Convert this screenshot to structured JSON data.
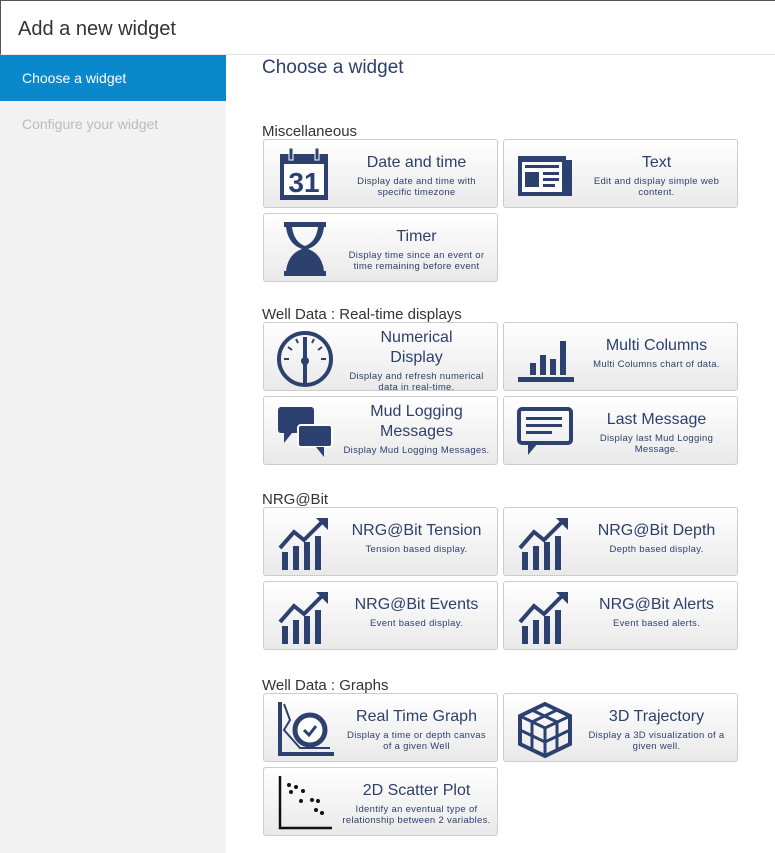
{
  "header": {
    "title": "Add a new widget"
  },
  "sidebar": {
    "items": [
      {
        "label": "Choose a widget",
        "active": true
      },
      {
        "label": "Configure your widget",
        "active": false
      }
    ]
  },
  "main": {
    "title": "Choose a widget",
    "sections": [
      {
        "label": "Miscellaneous",
        "widgets": [
          {
            "title": "Date and time",
            "desc": "Display date and time with specific timezone",
            "icon": "calendar-icon"
          },
          {
            "title": "Text",
            "desc": "Edit and display simple web content.",
            "icon": "newspaper-icon"
          },
          {
            "title": "Timer",
            "desc": "Display time since an event or time remaining before event",
            "icon": "hourglass-icon"
          }
        ]
      },
      {
        "label": "Well Data : Real-time displays",
        "widgets": [
          {
            "title": "Numerical Display",
            "desc": "Display and refresh numerical data in real-time.",
            "icon": "gauge-icon"
          },
          {
            "title": "Multi Columns",
            "desc": "Multi Columns chart of data.",
            "icon": "bar-chart-icon"
          },
          {
            "title": "Mud Logging Messages",
            "desc": "Display Mud Logging Messages.",
            "icon": "chat-bubbles-icon"
          },
          {
            "title": "Last Message",
            "desc": "Display last Mud Logging Message.",
            "icon": "message-icon"
          }
        ]
      },
      {
        "label": "NRG@Bit",
        "widgets": [
          {
            "title": "NRG@Bit Tension",
            "desc": "Tension based display.",
            "icon": "trend-chart-icon"
          },
          {
            "title": "NRG@Bit Depth",
            "desc": "Depth based display.",
            "icon": "trend-chart-icon"
          },
          {
            "title": "NRG@Bit Events",
            "desc": "Event based display.",
            "icon": "trend-chart-icon"
          },
          {
            "title": "NRG@Bit Alerts",
            "desc": "Event based alerts.",
            "icon": "trend-chart-icon"
          }
        ]
      },
      {
        "label": "Well Data : Graphs",
        "widgets": [
          {
            "title": "Real Time Graph",
            "desc": "Display a time or depth canvas of a given Well",
            "icon": "clock-graph-icon"
          },
          {
            "title": "3D Trajectory",
            "desc": "Display a 3D visualization of a given well.",
            "icon": "cube-icon"
          },
          {
            "title": "2D Scatter Plot",
            "desc": "Identify an eventual type of relationship between 2 variables.",
            "icon": "scatter-plot-icon"
          }
        ]
      }
    ]
  },
  "colors": {
    "accent": "#0a88cc",
    "icon": "#2d4170"
  }
}
